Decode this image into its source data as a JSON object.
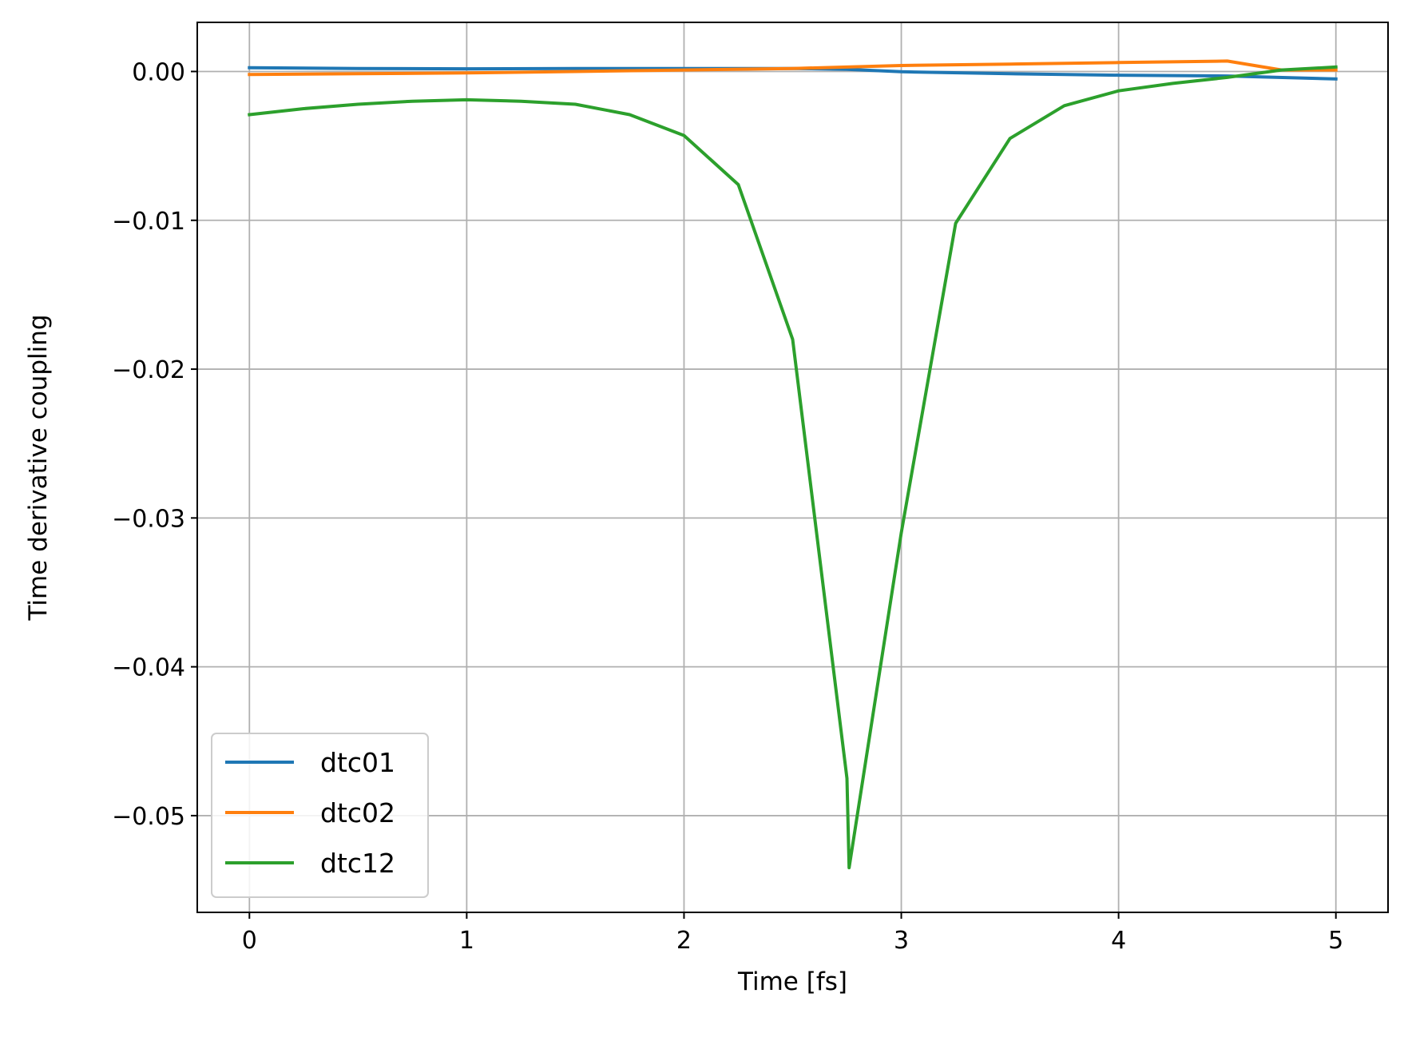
{
  "chart_data": {
    "type": "line",
    "xlabel": "Time [fs]",
    "ylabel": "Time derivative coupling",
    "xlim": [
      -0.24,
      5.24
    ],
    "ylim": [
      -0.0565,
      0.0033
    ],
    "xticks": [
      0,
      1,
      2,
      3,
      4,
      5
    ],
    "xtick_labels": [
      "0",
      "1",
      "2",
      "3",
      "4",
      "5"
    ],
    "yticks": [
      0.0,
      -0.01,
      -0.02,
      -0.03,
      -0.04,
      -0.05
    ],
    "ytick_labels": [
      "0.00",
      "−0.01",
      "−0.02",
      "−0.03",
      "−0.04",
      "−0.05"
    ],
    "grid": true,
    "legend_position": "lower-left",
    "series": [
      {
        "name": "dtc01",
        "color": "#1f77b4",
        "x": [
          0,
          0.5,
          1,
          1.5,
          2,
          2.5,
          2.75,
          3,
          3.5,
          4,
          4.5,
          5
        ],
        "y": [
          0.00025,
          0.0002,
          0.00018,
          0.0002,
          0.0002,
          0.0002,
          0.00015,
          -2e-05,
          -0.00015,
          -0.00025,
          -0.0003,
          -0.0005
        ]
      },
      {
        "name": "dtc02",
        "color": "#ff7f0e",
        "x": [
          0,
          0.5,
          1,
          1.5,
          2,
          2.5,
          2.75,
          3,
          3.5,
          4,
          4.5,
          4.75,
          5
        ],
        "y": [
          -0.0002,
          -0.00015,
          -0.0001,
          0.0,
          0.0001,
          0.0002,
          0.0003,
          0.0004,
          0.0005,
          0.0006,
          0.0007,
          0.0001,
          0.0001
        ]
      },
      {
        "name": "dtc12",
        "color": "#2ca02c",
        "x": [
          0,
          0.25,
          0.5,
          0.75,
          1,
          1.25,
          1.5,
          1.75,
          2,
          2.25,
          2.5,
          2.75,
          2.76,
          3,
          3.25,
          3.5,
          3.75,
          4,
          4.25,
          4.5,
          4.75,
          5
        ],
        "y": [
          -0.0029,
          -0.0025,
          -0.0022,
          -0.002,
          -0.0019,
          -0.002,
          -0.0022,
          -0.0029,
          -0.0043,
          -0.0076,
          -0.018,
          -0.0475,
          -0.0535,
          -0.031,
          -0.0102,
          -0.0045,
          -0.0023,
          -0.0013,
          -0.0008,
          -0.0004,
          0.0001,
          0.0003
        ]
      }
    ]
  }
}
